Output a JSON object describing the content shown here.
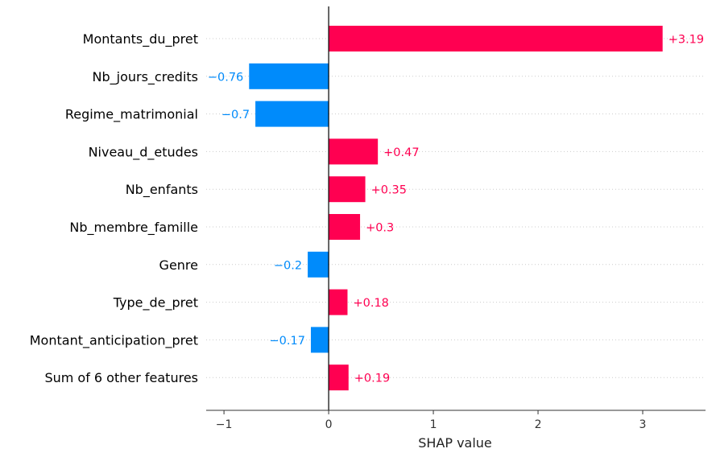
{
  "chart_data": {
    "type": "bar",
    "orientation": "horizontal",
    "categories": [
      "Montants_du_pret",
      "Nb_jours_credits",
      "Regime_matrimonial",
      "Niveau_d_etudes",
      "Nb_enfants",
      "Nb_membre_famille",
      "Genre",
      "Type_de_pret",
      "Montant_anticipation_pret",
      "Sum of 6 other features"
    ],
    "values": [
      3.19,
      -0.76,
      -0.7,
      0.47,
      0.35,
      0.3,
      -0.2,
      0.18,
      -0.17,
      0.19
    ],
    "value_labels": [
      "+3.19",
      "−0.76",
      "−0.7",
      "+0.47",
      "+0.35",
      "+0.3",
      "−0.2",
      "+0.18",
      "−0.17",
      "+0.19"
    ],
    "xlabel": "SHAP value",
    "xlim": [
      -1.17,
      3.6
    ],
    "xticks": [
      -1,
      0,
      1,
      2,
      3
    ],
    "xtick_labels": [
      "−1",
      "0",
      "1",
      "2",
      "3"
    ],
    "grid": "horizontal dotted",
    "colors": {
      "positive": "#ff0051",
      "negative": "#008bfb",
      "zero_line": "#000000",
      "grid": "#cccccc"
    }
  }
}
